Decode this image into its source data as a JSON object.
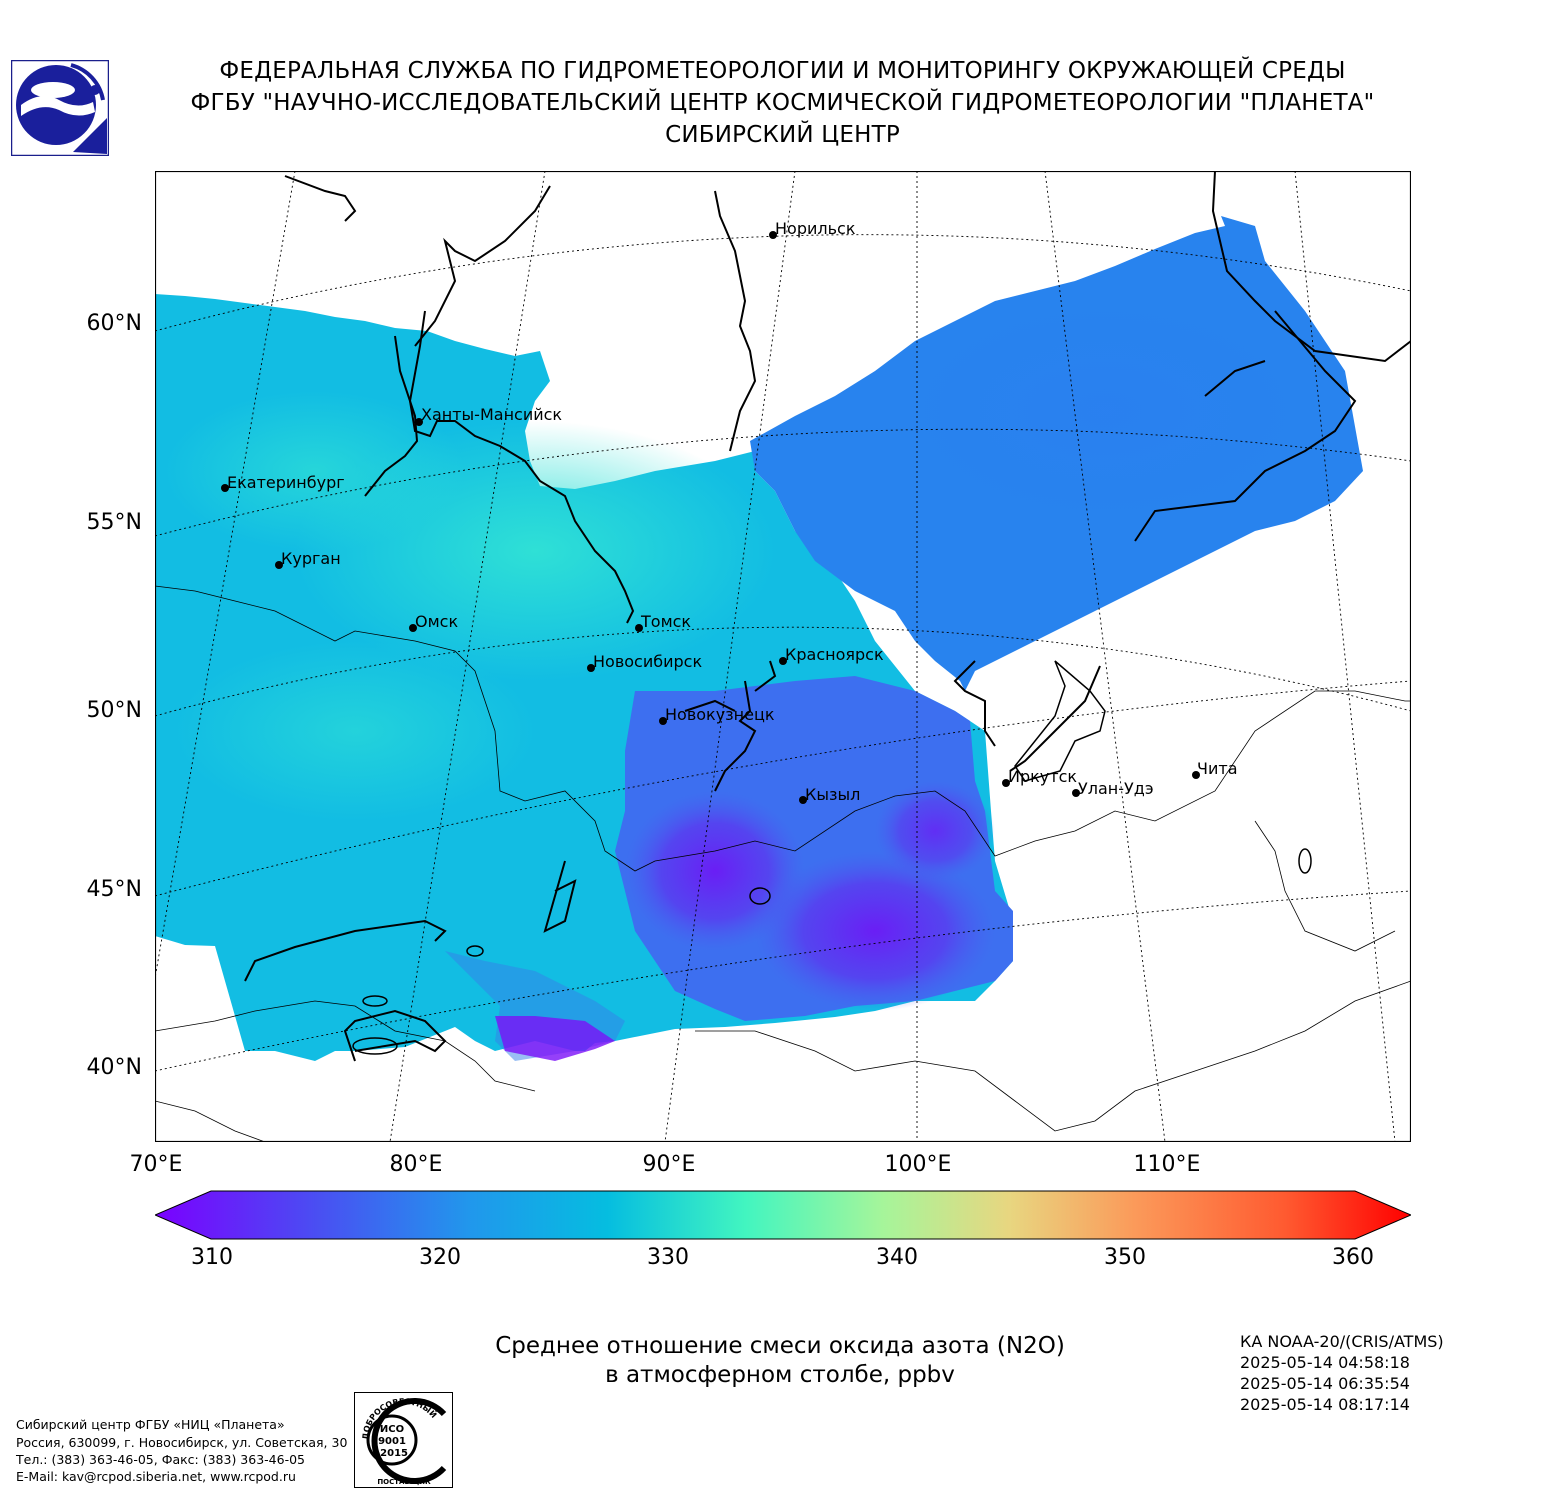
{
  "header": {
    "line1": "ФЕДЕРАЛЬНАЯ СЛУЖБА ПО ГИДРОМЕТЕОРОЛОГИИ И МОНИТОРИНГУ ОКРУЖАЮЩЕЙ СРЕДЫ",
    "line2": "ФГБУ \"НАУЧНО-ИССЛЕДОВАТЕЛЬСКИЙ ЦЕНТР КОСМИЧЕСКОЙ ГИДРОМЕТЕОРОЛОГИИ \"ПЛАНЕТА\"",
    "line3": "СИБИРСКИЙ ЦЕНТР"
  },
  "map": {
    "lat_labels": [
      "60°N",
      "55°N",
      "50°N",
      "45°N",
      "40°N"
    ],
    "lon_labels": [
      "70°E",
      "80°E",
      "90°E",
      "100°E",
      "110°E"
    ],
    "cities": [
      {
        "name": "Норильск"
      },
      {
        "name": "Ханты-Мансийск"
      },
      {
        "name": "Екатеринбург"
      },
      {
        "name": "Курган"
      },
      {
        "name": "Омск"
      },
      {
        "name": "Томск"
      },
      {
        "name": "Новосибирск"
      },
      {
        "name": "Красноярск"
      },
      {
        "name": "Новокузнецк"
      },
      {
        "name": "Кызыл"
      },
      {
        "name": "Иркутск"
      },
      {
        "name": "Улан-Удэ"
      },
      {
        "name": "Чита"
      }
    ]
  },
  "colorbar": {
    "ticks": [
      "310",
      "320",
      "330",
      "340",
      "350",
      "360"
    ],
    "colors": [
      "#7b00ff",
      "#3a6af0",
      "#05bde0",
      "#42f5c0",
      "#a6f59a",
      "#e8d680",
      "#fb9a5a",
      "#ff5a30",
      "#ff0000"
    ]
  },
  "title": {
    "line1": "Среднее отношение смеси оксида азота (N2O)",
    "line2": "в атмосферном столбе, ppbv"
  },
  "satellite": {
    "name": "КА NOAA-20/(CRIS/ATMS)",
    "times": [
      "2025-05-14 04:58:18",
      "2025-05-14 06:35:54",
      "2025-05-14 08:17:14"
    ]
  },
  "footer": {
    "address": [
      "Сибирский центр ФГБУ «НИЦ «Планета»",
      "Россия, 630099, г. Новосибирск, ул. Советская, 30",
      "Тел.: (383) 363-46-05, Факс: (383) 363-46-05",
      "E-Mail: kav@rcpod.siberia.net, www.rcpod.ru"
    ],
    "iso_badge": {
      "top_text": "ДОБРОСОВЕСТНЫЙ",
      "mid1": "ИСО",
      "mid2": "9001",
      "mid3": "-2015",
      "bottom_text": "ПОСТАВЩИК"
    }
  }
}
